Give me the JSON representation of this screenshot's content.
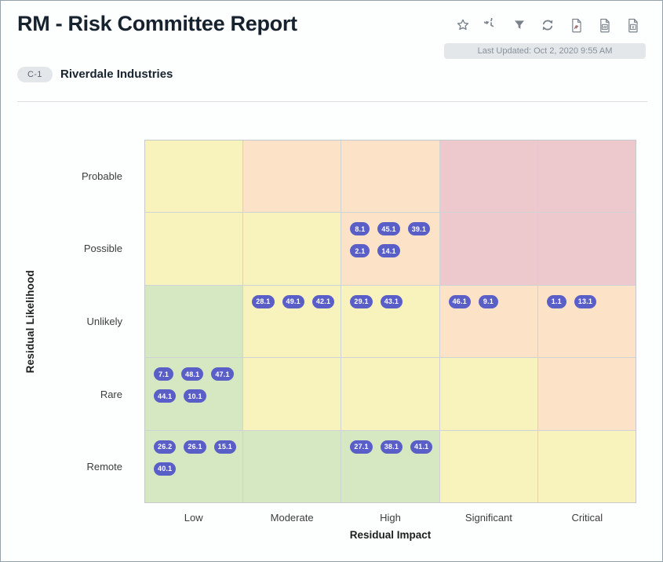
{
  "header": {
    "title": "RM - Risk Committee Report",
    "last_updated": "Last Updated: Oct 2, 2020 9:55 AM",
    "toolbar_icons": [
      "favorite-star",
      "history",
      "filter",
      "refresh",
      "export-pdf",
      "export-word",
      "export-excel"
    ]
  },
  "report": {
    "badge": "C-1",
    "name": "Riverdale Industries"
  },
  "chart_data": {
    "type": "heatmap",
    "title": "",
    "xlabel": "Residual Impact",
    "ylabel": "Residual Likelihood",
    "x_categories": [
      "Low",
      "Moderate",
      "High",
      "Significant",
      "Critical"
    ],
    "y_categories": [
      "Probable",
      "Possible",
      "Unlikely",
      "Rare",
      "Remote"
    ],
    "legend_position": "none",
    "grid": true,
    "cell_colors": [
      [
        "yellow",
        "peach",
        "peach",
        "pink",
        "pink"
      ],
      [
        "yellow",
        "yellow",
        "peach",
        "pink",
        "pink"
      ],
      [
        "green",
        "yellow",
        "yellow",
        "peach",
        "peach"
      ],
      [
        "green",
        "yellow",
        "yellow",
        "yellow",
        "peach"
      ],
      [
        "green",
        "green",
        "green",
        "yellow",
        "yellow"
      ]
    ],
    "cells": [
      [
        [],
        [],
        [],
        [],
        []
      ],
      [
        [],
        [],
        [
          "8.1",
          "45.1",
          "39.1",
          "2.1",
          "14.1"
        ],
        [],
        []
      ],
      [
        [],
        [
          "28.1",
          "49.1",
          "42.1"
        ],
        [
          "29.1",
          "43.1"
        ],
        [
          "46.1",
          "9.1"
        ],
        [
          "1.1",
          "13.1"
        ]
      ],
      [
        [
          "7.1",
          "48.1",
          "47.1",
          "44.1",
          "10.1"
        ],
        [],
        [],
        [],
        []
      ],
      [
        [
          "26.2",
          "26.1",
          "15.1",
          "40.1"
        ],
        [],
        [
          "27.1",
          "38.1",
          "41.1"
        ],
        [],
        []
      ]
    ],
    "colors": {
      "yellow": "#f8f3bd",
      "peach": "#fce3c8",
      "pink": "#edc9ce",
      "green": "#d6e8c1",
      "badge": "#5a5fc8",
      "gridline": "#cfd3d6"
    }
  }
}
